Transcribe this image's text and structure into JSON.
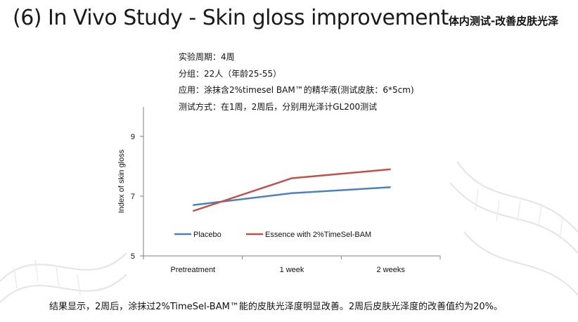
{
  "slide": {
    "title": "(6) In Vivo Study - Skin gloss improvement",
    "title_cn": "体内测试-改善皮肤光泽",
    "info_lines": [
      "实验周期：4周",
      "分组：22人（年龄25-55）",
      "应用：涂抹含2%timesel BAM™的精华液(测试皮肤：6*5cm)",
      "测试方式：在1周，2周后，分别用光泽计GL200测试"
    ],
    "conclusion": "结果显示，2周后，涂抹过2%TimeSel-BAM™能的皮肤光泽度明显改善。2周后皮肤光泽度的改善值约为20%。"
  },
  "chart_data": {
    "type": "line",
    "categories": [
      "Pretreatment",
      "1 week",
      "2 weeks"
    ],
    "series": [
      {
        "name": "Placebo",
        "values": [
          6.7,
          7.1,
          7.3
        ],
        "color": "#4f81bd"
      },
      {
        "name": "Essence with 2%TimeSel-BAM",
        "values": [
          6.5,
          7.6,
          7.9
        ],
        "color": "#c0504d"
      }
    ],
    "title": "",
    "xlabel": "",
    "ylabel": "Index of skin gloss",
    "ylim": [
      5,
      9
    ],
    "yticks": [
      5,
      7,
      9
    ],
    "grid": false,
    "legend": "inside-bottom"
  }
}
